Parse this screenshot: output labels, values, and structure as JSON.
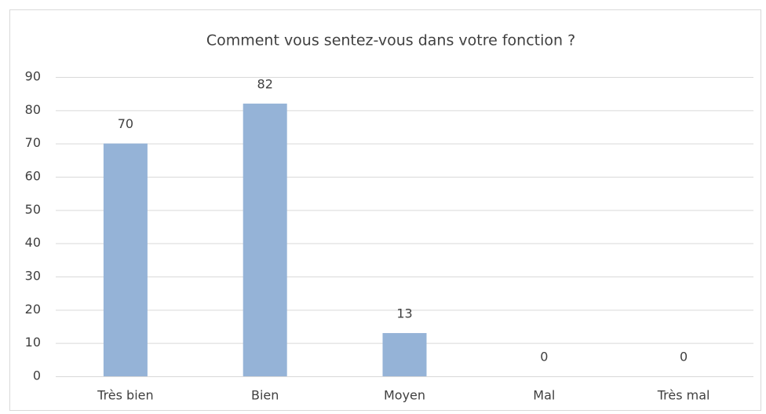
{
  "chart_data": {
    "type": "bar",
    "title": "Comment vous sentez-vous dans votre fonction ?",
    "categories": [
      "Très bien",
      "Bien",
      "Moyen",
      "Mal",
      "Très mal"
    ],
    "values": [
      70,
      82,
      13,
      0,
      0
    ],
    "color": "#95b3d7",
    "ylim": [
      0,
      90
    ],
    "yticks": [
      0,
      10,
      20,
      30,
      40,
      50,
      60,
      70,
      80,
      90
    ],
    "grid": true
  }
}
